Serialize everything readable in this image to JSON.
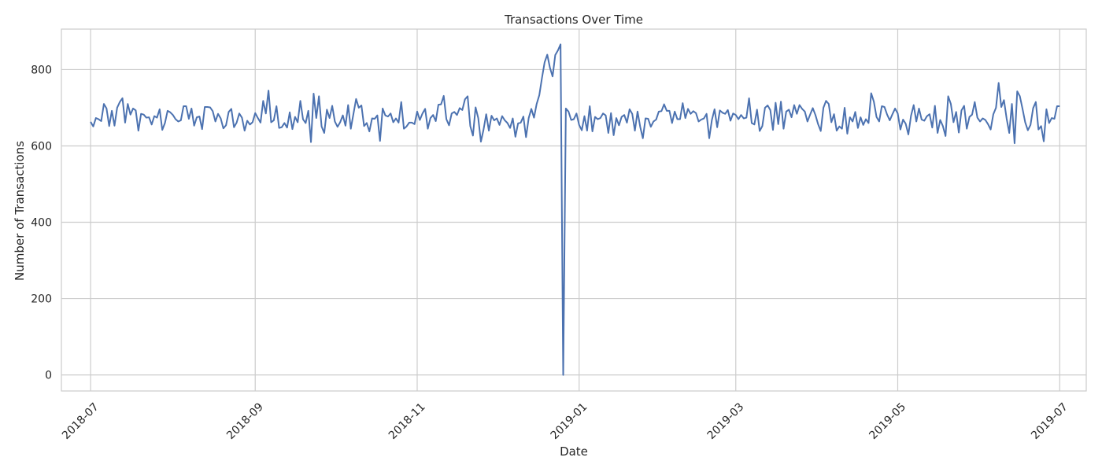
{
  "chart_data": {
    "type": "line",
    "title": "Transactions Over Time",
    "xlabel": "Date",
    "ylabel": "Number of Transactions",
    "ylim": [
      -42,
      906
    ],
    "xlim": [
      "2018-06-20",
      "2019-07-11"
    ],
    "yticks": [
      0,
      200,
      400,
      600,
      800
    ],
    "xticks": [
      "2018-07",
      "2018-09",
      "2018-11",
      "2019-01",
      "2019-03",
      "2019-05",
      "2019-07"
    ],
    "xtick_dates": [
      "2018-07-01",
      "2018-09-01",
      "2018-11-01",
      "2019-01-01",
      "2019-03-01",
      "2019-05-01",
      "2019-07-01"
    ],
    "grid": true,
    "line_color": "#4c72b0",
    "series": [
      {
        "start_date": "2018-07-01",
        "values": [
          663,
          651,
          673,
          670,
          665,
          710,
          698,
          652,
          692,
          653,
          700,
          715,
          725,
          661,
          710,
          682,
          698,
          693,
          640,
          684,
          682,
          674,
          675,
          656,
          678,
          674,
          696,
          642,
          660,
          692,
          688,
          681,
          670,
          664,
          667,
          704,
          704,
          671,
          698,
          653,
          675,
          677,
          644,
          702,
          702,
          701,
          691,
          664,
          684,
          672,
          646,
          654,
          689,
          697,
          649,
          661,
          685,
          674,
          640,
          666,
          656,
          662,
          686,
          673,
          661,
          718,
          685,
          745,
          662,
          667,
          704,
          647,
          649,
          660,
          648,
          688,
          644,
          676,
          662,
          718,
          670,
          660,
          692,
          610,
          737,
          673,
          730,
          651,
          634,
          695,
          673,
          705,
          664,
          650,
          662,
          680,
          653,
          707,
          645,
          684,
          723,
          700,
          706,
          652,
          660,
          638,
          672,
          671,
          680,
          613,
          698,
          680,
          677,
          685,
          662,
          672,
          661,
          715,
          645,
          651,
          661,
          661,
          657,
          690,
          668,
          685,
          697,
          645,
          673,
          681,
          665,
          708,
          709,
          731,
          670,
          654,
          685,
          689,
          681,
          699,
          694,
          722,
          730,
          652,
          627,
          701,
          673,
          611,
          643,
          683,
          640,
          679,
          667,
          672,
          655,
          678,
          667,
          660,
          647,
          672,
          624,
          659,
          661,
          677,
          623,
          673,
          697,
          674,
          710,
          733,
          778,
          819,
          839,
          805,
          782,
          838,
          850,
          866,
          0,
          698,
          690,
          668,
          670,
          685,
          655,
          641,
          678,
          640,
          704,
          638,
          676,
          670,
          673,
          685,
          680,
          634,
          686,
          628,
          673,
          654,
          676,
          681,
          661,
          696,
          684,
          640,
          690,
          650,
          620,
          672,
          671,
          650,
          664,
          669,
          690,
          691,
          709,
          692,
          692,
          660,
          690,
          670,
          670,
          712,
          673,
          697,
          684,
          691,
          686,
          664,
          669,
          672,
          684,
          620,
          668,
          696,
          649,
          693,
          687,
          684,
          694,
          666,
          685,
          681,
          670,
          681,
          672,
          674,
          725,
          660,
          656,
          695,
          639,
          652,
          700,
          706,
          694,
          642,
          713,
          657,
          716,
          645,
          690,
          695,
          675,
          707,
          684,
          707,
          697,
          690,
          664,
          682,
          699,
          681,
          657,
          639,
          700,
          718,
          710,
          662,
          683,
          640,
          651,
          645,
          700,
          632,
          675,
          664,
          689,
          647,
          675,
          655,
          670,
          660,
          738,
          716,
          676,
          664,
          704,
          702,
          682,
          667,
          683,
          698,
          685,
          643,
          669,
          658,
          630,
          679,
          707,
          664,
          698,
          669,
          666,
          678,
          683,
          648,
          705,
          634,
          668,
          652,
          626,
          730,
          710,
          662,
          689,
          635,
          693,
          705,
          645,
          676,
          682,
          715,
          674,
          664,
          672,
          668,
          657,
          643,
          683,
          700,
          765,
          702,
          720,
          672,
          634,
          710,
          607,
          743,
          730,
          697,
          662,
          641,
          655,
          699,
          715,
          643,
          652,
          612,
          696,
          660,
          673,
          671,
          704,
          704
        ]
      }
    ]
  }
}
